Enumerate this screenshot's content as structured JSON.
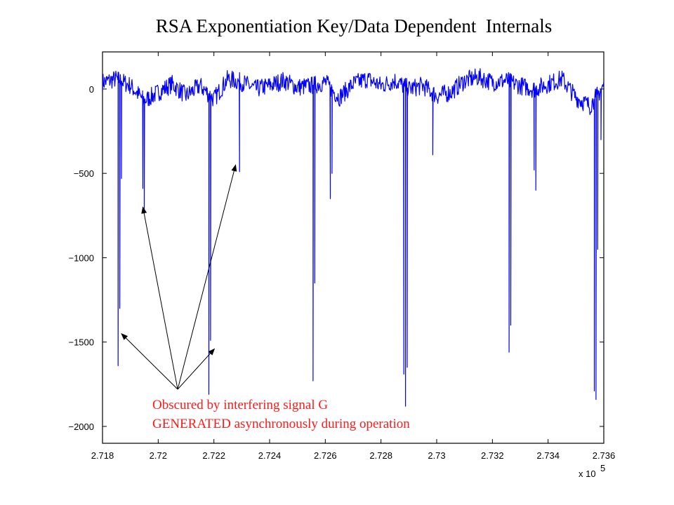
{
  "chart_data": {
    "type": "line",
    "title": "RSA Exponentiation Key/Data Dependent  Internals",
    "xlabel": "",
    "ylabel": "",
    "x_multiplier_label": "x 10",
    "x_multiplier_exponent": "5",
    "xlim": [
      2.718,
      2.736
    ],
    "ylim": [
      -2100,
      220
    ],
    "xticks": [
      2.718,
      2.72,
      2.722,
      2.724,
      2.726,
      2.728,
      2.73,
      2.732,
      2.734,
      2.736
    ],
    "xtick_labels": [
      "2.718",
      "2.72",
      "2.722",
      "2.724",
      "2.726",
      "2.728",
      "2.73",
      "2.732",
      "2.734",
      "2.736"
    ],
    "yticks": [
      0,
      -500,
      -1000,
      -1500,
      -2000
    ],
    "ytick_labels": [
      "0",
      "−500",
      "−1000",
      "−1500",
      "−2000"
    ],
    "grid": false,
    "series": [
      {
        "color": "#0000ff",
        "baseline": [
          [
            2.718,
            40
          ],
          [
            2.7185,
            60
          ],
          [
            2.719,
            20
          ],
          [
            2.7195,
            -70
          ],
          [
            2.72,
            -20
          ],
          [
            2.7205,
            30
          ],
          [
            2.721,
            -40
          ],
          [
            2.7215,
            20
          ],
          [
            2.722,
            -60
          ],
          [
            2.7225,
            60
          ],
          [
            2.723,
            40
          ],
          [
            2.7235,
            0
          ],
          [
            2.724,
            20
          ],
          [
            2.7245,
            50
          ],
          [
            2.725,
            10
          ],
          [
            2.7255,
            20
          ],
          [
            2.726,
            40
          ],
          [
            2.7265,
            -50
          ],
          [
            2.727,
            30
          ],
          [
            2.7275,
            60
          ],
          [
            2.728,
            20
          ],
          [
            2.7285,
            50
          ],
          [
            2.729,
            0
          ],
          [
            2.7295,
            20
          ],
          [
            2.73,
            -40
          ],
          [
            2.7305,
            -20
          ],
          [
            2.731,
            50
          ],
          [
            2.7315,
            70
          ],
          [
            2.732,
            40
          ],
          [
            2.7325,
            50
          ],
          [
            2.733,
            20
          ],
          [
            2.7335,
            0
          ],
          [
            2.734,
            30
          ],
          [
            2.7345,
            60
          ],
          [
            2.735,
            -50
          ],
          [
            2.7355,
            -100
          ],
          [
            2.736,
            20
          ]
        ],
        "spikes": [
          [
            2.71856,
            -1640
          ],
          [
            2.71862,
            -1300
          ],
          [
            2.71868,
            -530
          ],
          [
            2.71945,
            -590
          ],
          [
            2.7195,
            -710
          ],
          [
            2.72182,
            -1810
          ],
          [
            2.72188,
            -1490
          ],
          [
            2.72292,
            -490
          ],
          [
            2.72556,
            -1730
          ],
          [
            2.72562,
            -1150
          ],
          [
            2.72618,
            -650
          ],
          [
            2.72624,
            -500
          ],
          [
            2.72882,
            -1690
          ],
          [
            2.72888,
            -1880
          ],
          [
            2.72894,
            -1650
          ],
          [
            2.72986,
            -390
          ],
          [
            2.7326,
            -1560
          ],
          [
            2.73266,
            -1400
          ],
          [
            2.7335,
            -480
          ],
          [
            2.73356,
            -600
          ],
          [
            2.73566,
            -1790
          ],
          [
            2.73572,
            -1840
          ],
          [
            2.73578,
            -950
          ],
          [
            2.7359,
            -300
          ]
        ]
      }
    ],
    "annotations": {
      "lines": [
        "Obscured by interfering  signal G",
        "GENERATED asynchronously during  operation"
      ],
      "color": "#ff1a1a",
      "arrow_origin": [
        2.7207,
        -1780
      ],
      "arrow_targets": [
        [
          2.71868,
          -1450
        ],
        [
          2.71945,
          -700
        ],
        [
          2.72202,
          -1540
        ],
        [
          2.72278,
          -450
        ]
      ]
    }
  }
}
